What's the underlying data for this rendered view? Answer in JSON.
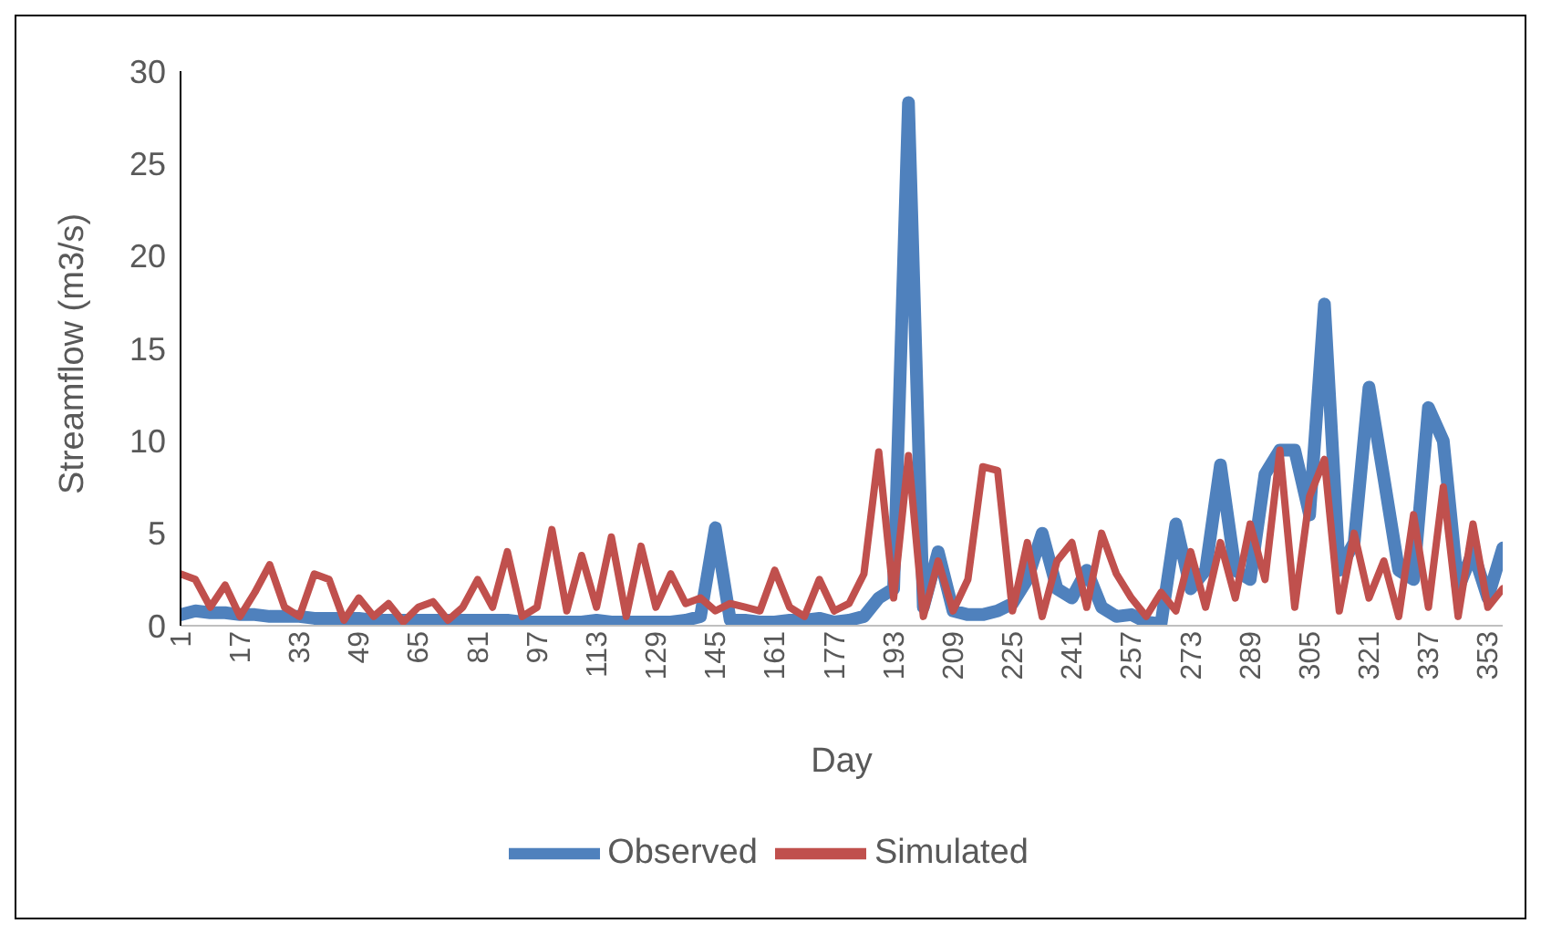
{
  "chart_data": {
    "type": "line",
    "xlabel": "Day",
    "ylabel": "Streamflow (m3/s)",
    "x": [
      1,
      5,
      9,
      13,
      17,
      21,
      25,
      29,
      33,
      37,
      41,
      45,
      49,
      53,
      57,
      61,
      65,
      69,
      73,
      77,
      81,
      85,
      89,
      93,
      97,
      101,
      105,
      109,
      113,
      117,
      121,
      125,
      129,
      133,
      137,
      141,
      145,
      149,
      153,
      157,
      161,
      165,
      169,
      173,
      177,
      181,
      185,
      189,
      193,
      197,
      201,
      205,
      209,
      213,
      217,
      221,
      225,
      229,
      233,
      237,
      241,
      245,
      249,
      253,
      257,
      261,
      265,
      269,
      273,
      277,
      281,
      285,
      289,
      293,
      297,
      301,
      305,
      309,
      313,
      317,
      321,
      325,
      329,
      333,
      337,
      341,
      345,
      349,
      353,
      357
    ],
    "series": [
      {
        "name": "Observed",
        "color": "#4f81bd",
        "values": [
          0.6,
          0.8,
          0.7,
          0.7,
          0.6,
          0.6,
          0.5,
          0.5,
          0.5,
          0.4,
          0.4,
          0.4,
          0.4,
          0.3,
          0.3,
          0.3,
          0.3,
          0.3,
          0.3,
          0.3,
          0.3,
          0.3,
          0.3,
          0.2,
          0.2,
          0.2,
          0.2,
          0.2,
          0.3,
          0.2,
          0.2,
          0.2,
          0.2,
          0.2,
          0.3,
          0.5,
          5.3,
          0.3,
          0.3,
          0.2,
          0.2,
          0.3,
          0.3,
          0.4,
          0.2,
          0.3,
          0.5,
          1.5,
          2,
          28.3,
          1,
          4,
          0.8,
          0.6,
          0.6,
          0.8,
          1.2,
          2.5,
          5,
          2,
          1.5,
          3,
          1,
          0.5,
          0.6,
          0.2,
          0.1,
          5.5,
          2,
          3,
          8.7,
          3,
          2.5,
          8.2,
          9.5,
          9.5,
          6,
          17.4,
          3,
          4.5,
          12.9,
          8,
          3,
          2.5,
          11.8,
          10,
          2,
          4,
          1.5,
          4.2
        ]
      },
      {
        "name": "Simulated",
        "color": "#c0504d",
        "values": [
          2.8,
          2.5,
          1,
          2.2,
          0.5,
          1.8,
          3.3,
          1,
          0.5,
          2.8,
          2.5,
          0.3,
          1.5,
          0.5,
          1.2,
          0.2,
          1,
          1.3,
          0.3,
          1,
          2.5,
          1,
          4,
          0.5,
          1,
          5.2,
          0.8,
          3.8,
          1,
          4.8,
          0.5,
          4.3,
          1,
          2.8,
          1.2,
          1.5,
          0.8,
          1.2,
          1,
          0.8,
          3,
          1,
          0.5,
          2.5,
          0.8,
          1.2,
          2.8,
          9.4,
          1.5,
          9.2,
          0.5,
          3.5,
          0.8,
          2.5,
          8.6,
          8.4,
          0.8,
          4.5,
          0.5,
          3.5,
          4.5,
          1,
          5,
          2.8,
          1.5,
          0.5,
          1.8,
          0.8,
          4,
          1,
          4.5,
          1.5,
          5.5,
          2.5,
          9.5,
          1,
          7,
          9,
          0.8,
          5,
          1.5,
          3.5,
          0.5,
          6,
          1,
          7.5,
          0.5,
          5.5,
          1,
          2
        ]
      }
    ],
    "xlim": [
      1,
      357
    ],
    "xticks": [
      1,
      17,
      33,
      49,
      65,
      81,
      97,
      113,
      129,
      145,
      161,
      177,
      193,
      209,
      225,
      241,
      257,
      273,
      289,
      305,
      321,
      337,
      353
    ],
    "ylim": [
      0,
      30
    ],
    "yticks": [
      0,
      5,
      10,
      15,
      20,
      25,
      30
    ],
    "grid": false,
    "legend": "bottom",
    "marker": "none",
    "line_style": "solid"
  }
}
